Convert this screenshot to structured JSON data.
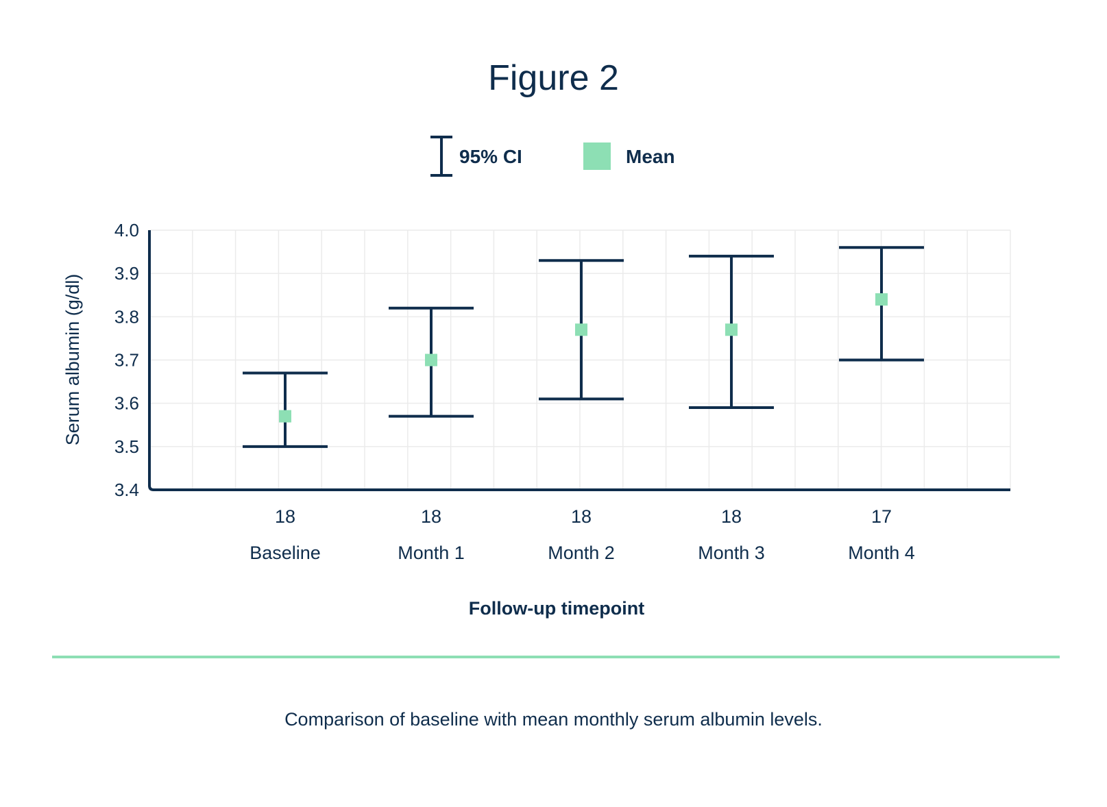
{
  "figure": {
    "title": "Figure 2",
    "caption": "Comparison of baseline with mean monthly serum albumin levels."
  },
  "colors": {
    "ink": "#0f2d4c",
    "mean_marker": "#8ddfb4",
    "grid": "#ebebeb",
    "divider": "#8ddfb4"
  },
  "legend": {
    "ci_label": "95% CI",
    "mean_label": "Mean"
  },
  "chart_data": {
    "type": "scatter",
    "ylabel": "Serum albumin (g/dl)",
    "xlabel": "Follow-up timepoint",
    "ylim": [
      3.4,
      4.0
    ],
    "yticks": [
      "3.4",
      "3.5",
      "3.6",
      "3.7",
      "3.8",
      "3.9",
      "4.0"
    ],
    "categories": [
      "Baseline",
      "Month 1",
      "Month 2",
      "Month 3",
      "Month 4"
    ],
    "n_labels": [
      "18",
      "18",
      "18",
      "18",
      "17"
    ],
    "grid": true,
    "legend_position": "top",
    "series": [
      {
        "name": "Mean",
        "values": [
          3.57,
          3.7,
          3.77,
          3.77,
          3.84
        ],
        "ci_lower": [
          3.5,
          3.57,
          3.61,
          3.59,
          3.7
        ],
        "ci_upper": [
          3.67,
          3.82,
          3.93,
          3.94,
          3.96
        ]
      }
    ]
  }
}
